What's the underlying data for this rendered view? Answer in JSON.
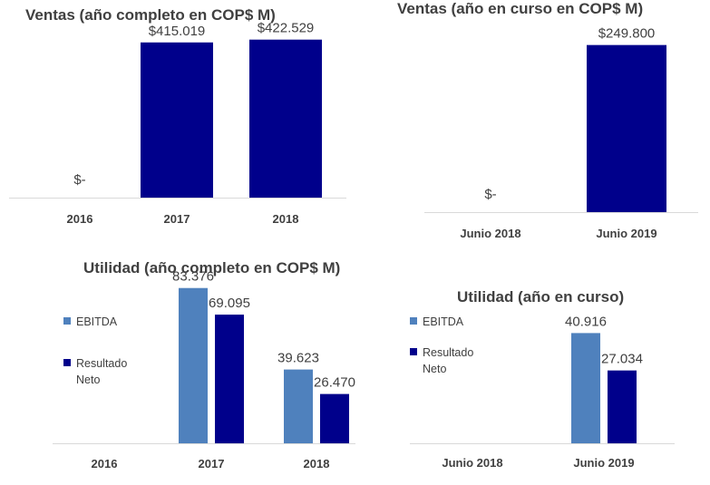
{
  "charts": [
    {
      "type": "bar",
      "title": "Ventas (año completo en COP$ M)",
      "categories": [
        "2016",
        "2017",
        "2018"
      ],
      "series": [
        {
          "values": [
            0,
            415019,
            422529
          ],
          "labels": [
            "$-",
            "$415.019",
            "$422.529"
          ],
          "color": "#00008b"
        }
      ],
      "ylim": [
        0,
        480000
      ]
    },
    {
      "type": "bar",
      "title": "Ventas (año en curso en COP$ M)",
      "categories": [
        "Junio 2018",
        "Junio 2019"
      ],
      "series": [
        {
          "values": [
            0,
            249800
          ],
          "labels": [
            "$-",
            "$249.800"
          ],
          "color": "#00008b"
        }
      ],
      "ylim": [
        0,
        290000
      ]
    },
    {
      "type": "bar",
      "title": "Utilidad (año completo en COP$ M)",
      "categories": [
        "2016",
        "2017",
        "2018"
      ],
      "series": [
        {
          "name": "EBITDA",
          "values": [
            0,
            83376,
            39623
          ],
          "labels": [
            "",
            "83.376",
            "39.623"
          ],
          "color": "#4f81bd"
        },
        {
          "name": "Resultado Neto",
          "values": [
            0,
            69095,
            26470
          ],
          "labels": [
            "",
            "69.095",
            "26.470"
          ],
          "color": "#00008b"
        }
      ],
      "legend": [
        {
          "label": "EBITDA",
          "color": "#4f81bd"
        },
        {
          "label": "Resultado\nNeto",
          "color": "#00008b"
        }
      ],
      "ylim": [
        0,
        92000
      ]
    },
    {
      "type": "bar",
      "title": "Utilidad (año en curso)",
      "categories": [
        "Junio 2018",
        "Junio 2019"
      ],
      "series": [
        {
          "name": "EBITDA",
          "values": [
            0,
            40916
          ],
          "labels": [
            "",
            "40.916"
          ],
          "color": "#4f81bd"
        },
        {
          "name": "Resultado Neto",
          "values": [
            0,
            27034
          ],
          "labels": [
            "",
            "27.034"
          ],
          "color": "#00008b"
        }
      ],
      "legend": [
        {
          "label": "EBITDA",
          "color": "#4f81bd"
        },
        {
          "label": "Resultado\nNeto",
          "color": "#00008b"
        }
      ],
      "ylim": [
        0,
        53500
      ]
    }
  ]
}
